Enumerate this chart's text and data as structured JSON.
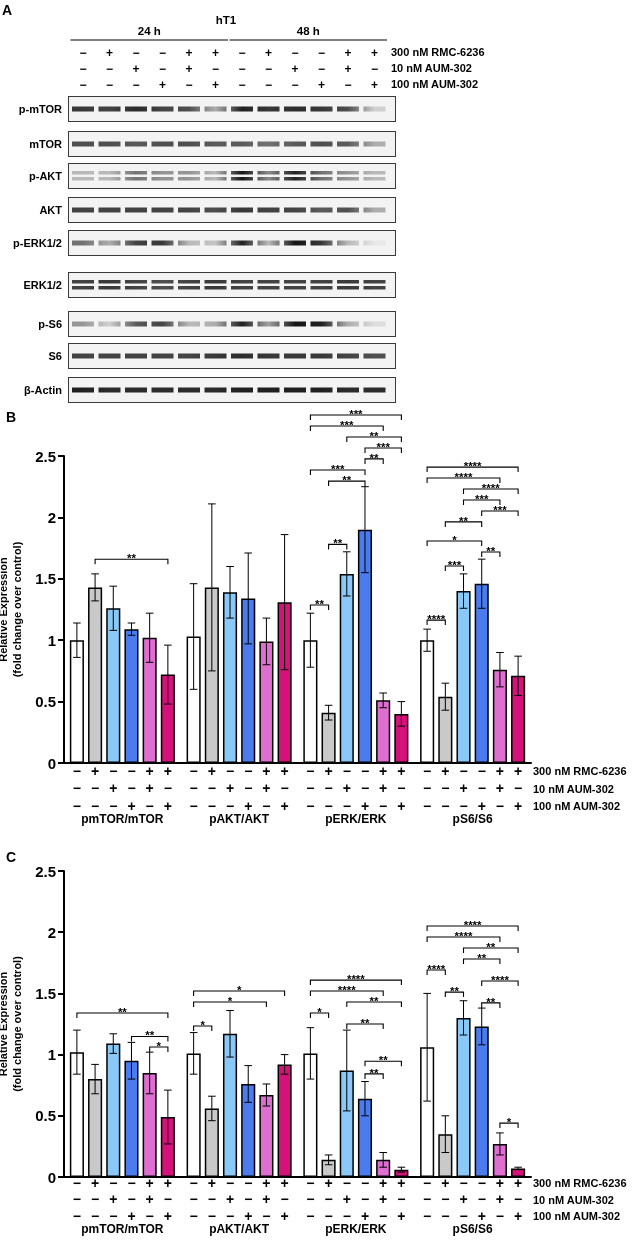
{
  "chart_data": [
    {
      "type": "other",
      "title": "A",
      "subtitle": "hT1",
      "annotations": [
        "24 h",
        "48 h",
        "− + − − + +",
        "− − + − + −",
        "− − − + − +",
        "300 nM RMC-6236",
        "10 nM AUM-302",
        "100 nM AUM-302",
        "p-mTOR",
        "mTOR",
        "p-AKT",
        "AKT",
        "p-ERK1/2",
        "ERK1/2",
        "p-S6",
        "S6",
        "β-Actin"
      ]
    },
    {
      "type": "bar",
      "title": "B",
      "ylabel": "Relative Expression\n(fold change over control)",
      "categories": [
        "pmTOR/mTOR",
        "pAKT/AKT",
        "pERK/ERK",
        "pS6/S6"
      ],
      "series": [
        {
          "color": "#ffffff",
          "values": [
            1.0,
            1.03,
            1.0,
            1.0
          ],
          "errors": [
            0.14,
            0.43,
            0.22,
            0.09
          ]
        },
        {
          "color": "#c9c9c9",
          "values": [
            1.43,
            1.43,
            0.41,
            0.54
          ],
          "errors": [
            0.11,
            0.68,
            0.06,
            0.11
          ]
        },
        {
          "color": "#8ac8f8",
          "values": [
            1.26,
            1.39,
            1.54,
            1.4
          ],
          "errors": [
            0.18,
            0.21,
            0.18,
            0.14
          ]
        },
        {
          "color": "#4a7cf0",
          "values": [
            1.09,
            1.34,
            1.9,
            1.46
          ],
          "errors": [
            0.05,
            0.37,
            0.35,
            0.2
          ]
        },
        {
          "color": "#de6fd0",
          "values": [
            1.02,
            0.99,
            0.51,
            0.76
          ],
          "errors": [
            0.2,
            0.19,
            0.06,
            0.14
          ]
        },
        {
          "color": "#d4127a",
          "values": [
            0.72,
            1.31,
            0.4,
            0.71
          ],
          "errors": [
            0.24,
            0.55,
            0.1,
            0.16
          ]
        }
      ],
      "ylim": [
        0,
        2.5
      ],
      "yticks": [
        0,
        0.5,
        1,
        1.5,
        2,
        2.5
      ],
      "annotations": [
        "− + − − + +",
        "− − + − + −",
        "− − − + − +",
        "300 nM RMC-6236",
        "10 nM AUM-302",
        "100 nM AUM-302",
        "**",
        "**",
        "**",
        "**",
        "***",
        "**",
        "***",
        "**",
        "***",
        "***",
        "****",
        "***",
        "**",
        "*",
        "**",
        "***",
        "***",
        "****",
        "****",
        "****"
      ]
    },
    {
      "type": "bar",
      "title": "C",
      "ylabel": "Relative Expression\n(fold change over control)",
      "categories": [
        "pmTOR/mTOR",
        "pAKT/AKT",
        "pERK/ERK",
        "pS6/S6"
      ],
      "series": [
        {
          "color": "#ffffff",
          "values": [
            1.02,
            1.01,
            1.01,
            1.06
          ],
          "errors": [
            0.18,
            0.17,
            0.21,
            0.44
          ]
        },
        {
          "color": "#c9c9c9",
          "values": [
            0.8,
            0.56,
            0.14,
            0.35
          ],
          "errors": [
            0.12,
            0.1,
            0.04,
            0.15
          ]
        },
        {
          "color": "#8ac8f8",
          "values": [
            1.09,
            1.17,
            0.87,
            1.3
          ],
          "errors": [
            0.08,
            0.19,
            0.33,
            0.14
          ]
        },
        {
          "color": "#4a7cf0",
          "values": [
            0.95,
            0.76,
            0.64,
            1.23
          ],
          "errors": [
            0.15,
            0.15,
            0.14,
            0.15
          ]
        },
        {
          "color": "#de6fd0",
          "values": [
            0.85,
            0.67,
            0.14,
            0.27
          ],
          "errors": [
            0.17,
            0.09,
            0.06,
            0.09
          ]
        },
        {
          "color": "#d4127a",
          "values": [
            0.49,
            0.92,
            0.06,
            0.07
          ],
          "errors": [
            0.22,
            0.08,
            0.02,
            0.01
          ]
        }
      ],
      "ylim": [
        0,
        2.5
      ],
      "yticks": [
        0,
        0.5,
        1,
        1.5,
        2,
        2.5
      ],
      "annotations": [
        "− + − − + +",
        "− − + − + −",
        "− − − + − +",
        "300 nM RMC-6236",
        "10 nM AUM-302",
        "100 nM AUM-302",
        "**",
        "**",
        "*",
        "*",
        "*",
        "*",
        "*",
        "**",
        "**",
        "****",
        "****",
        "**",
        "**",
        "****",
        "**",
        "**",
        "****",
        "**",
        "**",
        "****",
        "****",
        "*"
      ]
    }
  ]
}
